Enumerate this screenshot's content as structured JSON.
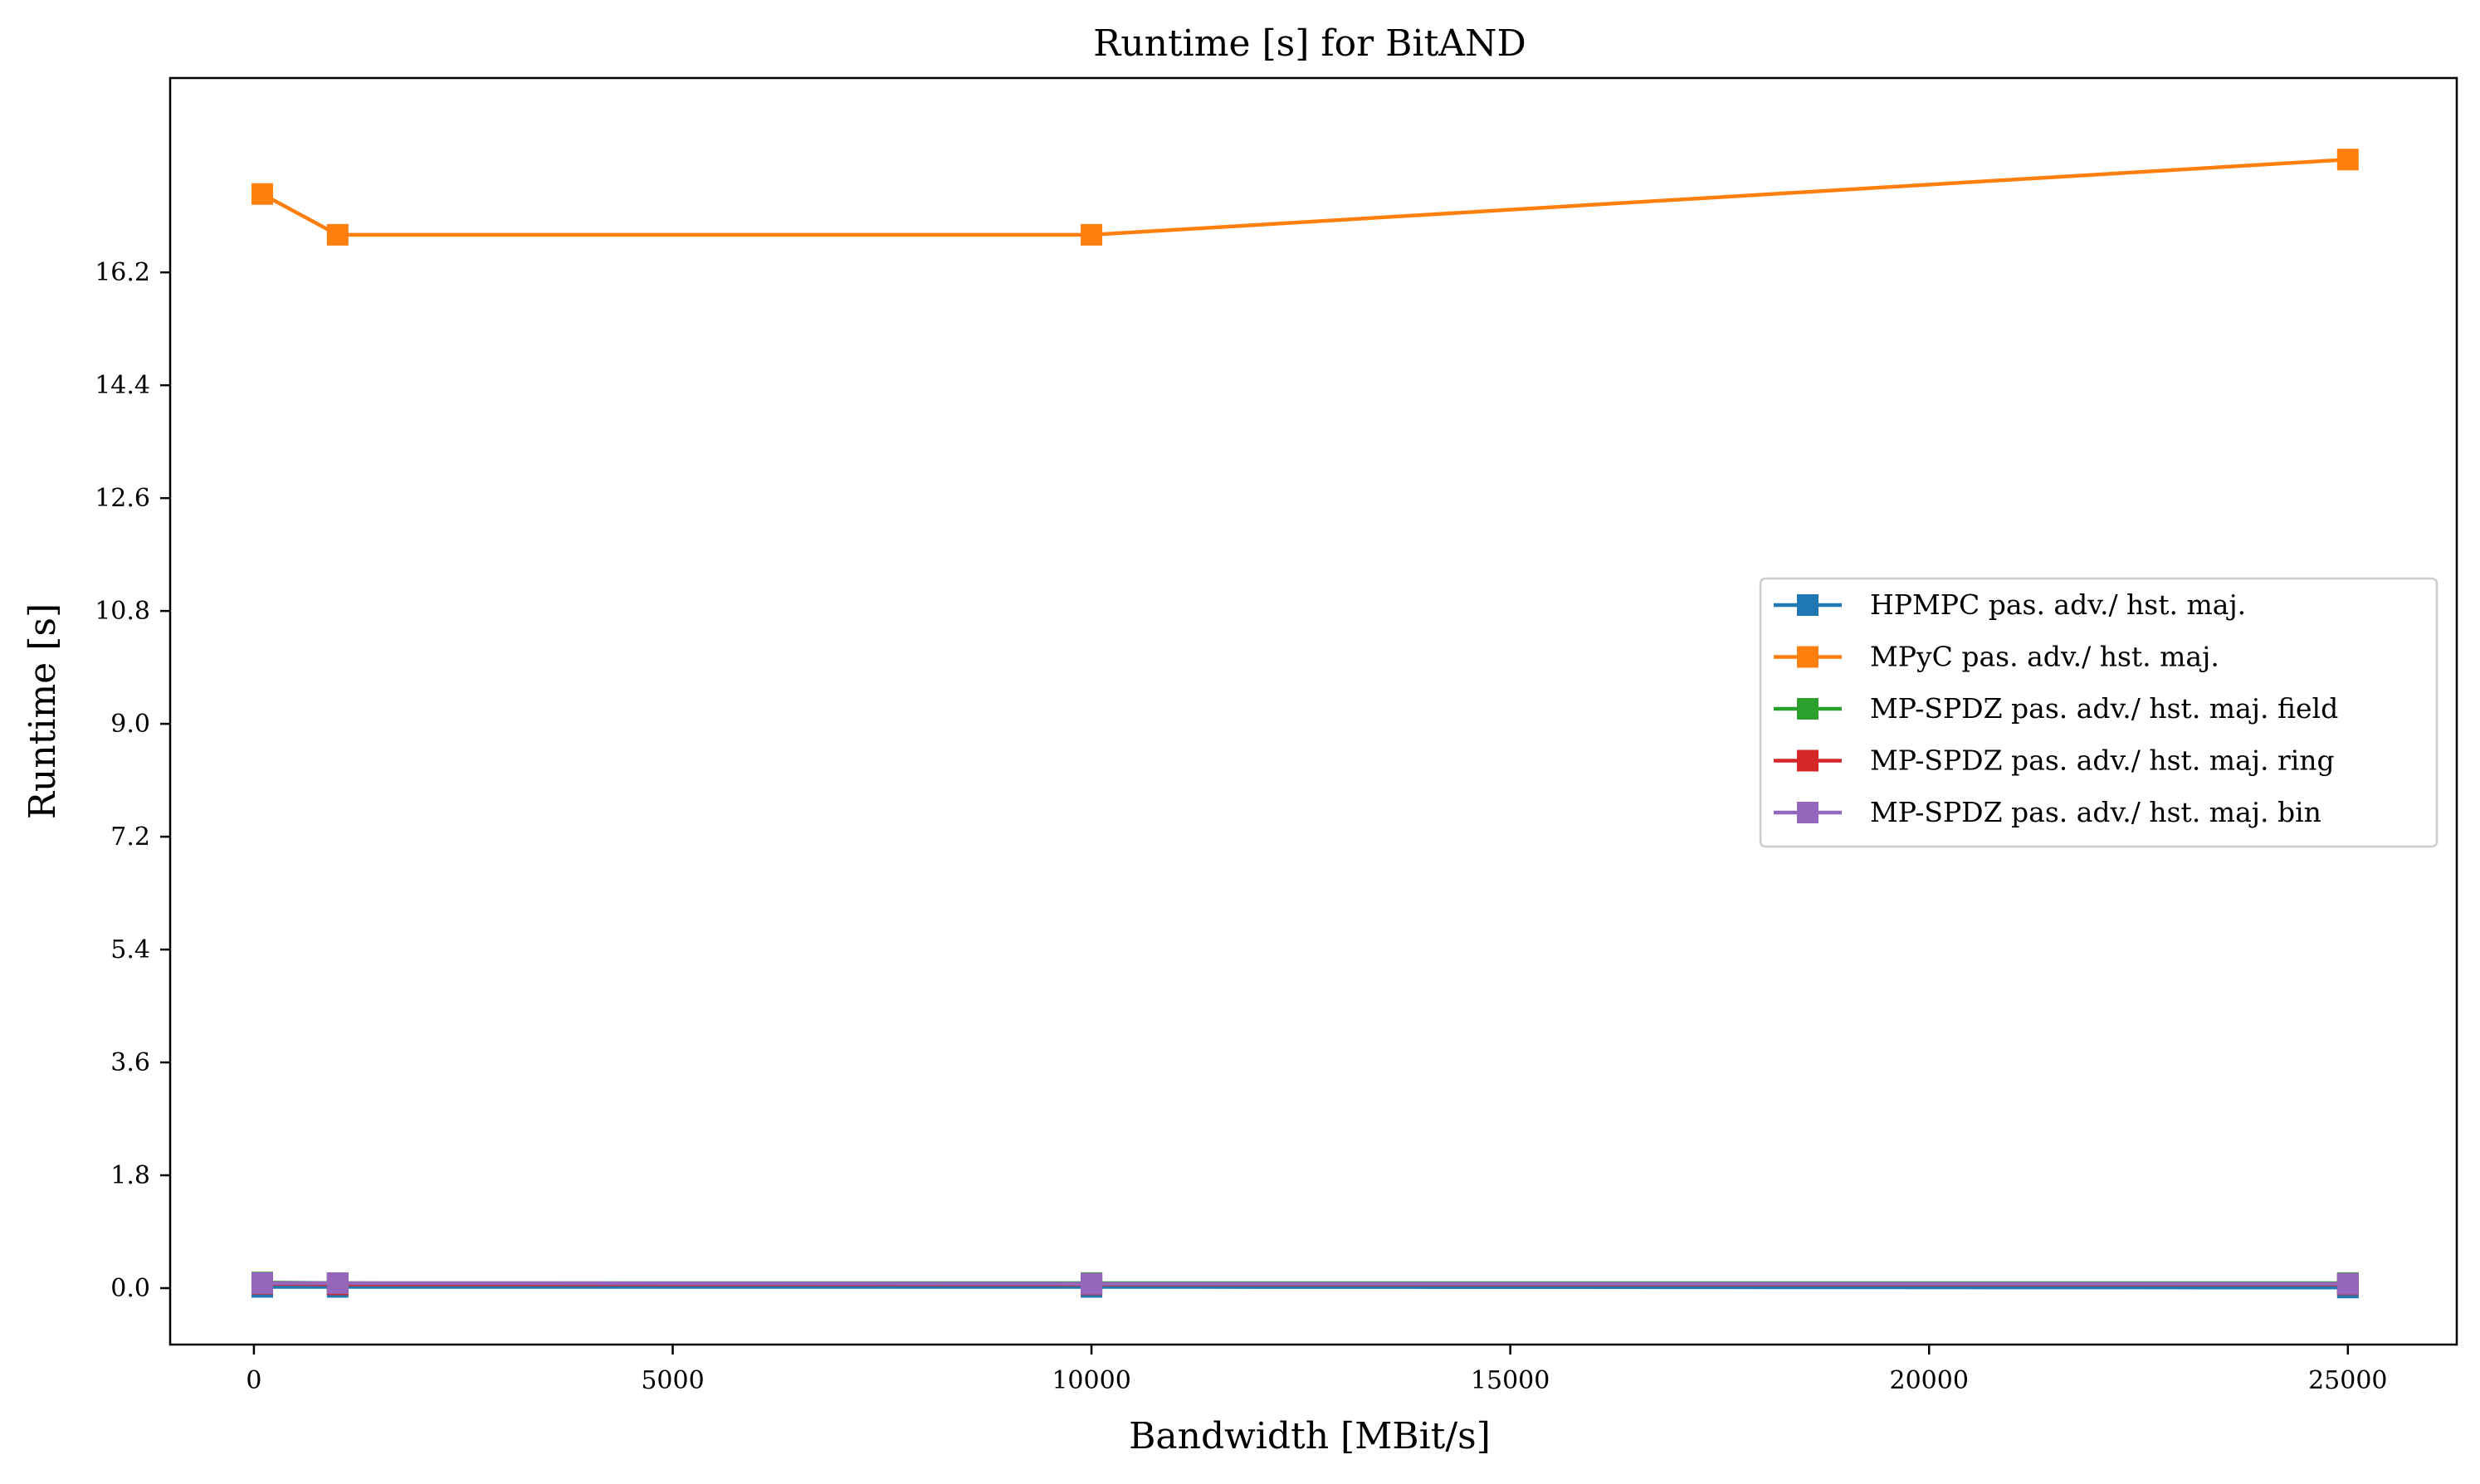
{
  "chart_data": {
    "type": "line",
    "title": "Runtime [s] for BitAND",
    "xlabel": "Bandwidth [MBit/s]",
    "ylabel": "Runtime [s]",
    "xlim": [
      -1000,
      26300
    ],
    "ylim": [
      -0.9,
      19.3
    ],
    "xticks": [
      0,
      5000,
      10000,
      15000,
      20000,
      25000
    ],
    "xtick_labels": [
      "0",
      "5000",
      "10000",
      "15000",
      "20000",
      "25000"
    ],
    "yticks": [
      0.0,
      1.8,
      3.6,
      5.4,
      7.2,
      9.0,
      10.8,
      12.6,
      14.4,
      16.2
    ],
    "ytick_labels": [
      "0.0",
      "1.8",
      "3.6",
      "5.4",
      "7.2",
      "9.0",
      "10.8",
      "12.6",
      "14.4",
      "16.2"
    ],
    "legend_position": "center-right",
    "x": [
      100,
      1000,
      10000,
      25000
    ],
    "series": [
      {
        "name": "HPMPC pas. adv./ hst. maj.",
        "color": "#1f77b4",
        "values": [
          0.02,
          0.02,
          0.02,
          0.01
        ]
      },
      {
        "name": "MPyC pas. adv./ hst. maj.",
        "color": "#ff7f0e",
        "values": [
          17.45,
          16.8,
          16.8,
          18.0
        ]
      },
      {
        "name": "MP-SPDZ pas. adv./ hst. maj. field",
        "color": "#2ca02c",
        "values": [
          0.09,
          0.08,
          0.08,
          0.08
        ]
      },
      {
        "name": "MP-SPDZ pas. adv./ hst. maj. ring",
        "color": "#d62728",
        "values": [
          0.07,
          0.06,
          0.06,
          0.06
        ]
      },
      {
        "name": "MP-SPDZ pas. adv./ hst. maj. bin",
        "color": "#9467bd",
        "values": [
          0.08,
          0.08,
          0.07,
          0.07
        ]
      }
    ]
  }
}
